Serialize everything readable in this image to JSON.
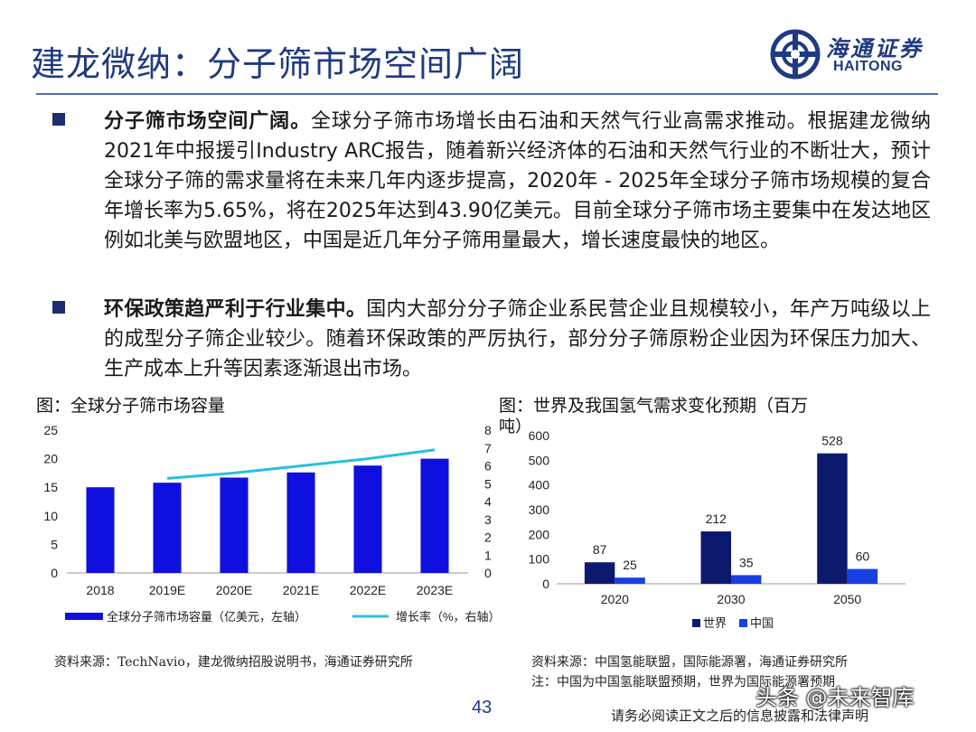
{
  "title": "建龙微纳：分子筛市场空间广阔",
  "logo": {
    "cn": "海通证券",
    "en": "HAITONG",
    "color": "#1f3a82"
  },
  "bullets": [
    {
      "heading": "分子筛市场空间广阔。",
      "text": "全球分子筛市场增长由石油和天然气行业高需求推动。根据建龙微纳2021年中报援引Industry ARC报告，随着新兴经济体的石油和天然气行业的不断壮大，预计全球分子筛的需求量将在未来几年内逐步提高，2020年 - 2025年全球分子筛市场规模的复合年增长率为5.65%，将在2025年达到43.90亿美元。目前全球分子筛市场主要集中在发达地区例如北美与欧盟地区，中国是近几年分子筛用量最大，增长速度最快的地区。"
    },
    {
      "heading": "环保政策趋严利于行业集中。",
      "text": "国内大部分分子筛企业系民营企业且规模较小，年产万吨级以上的成型分子筛企业较少。随着环保政策的严厉执行，部分分子筛原粉企业因为环保压力加大、生产成本上升等因素逐渐退出市场。"
    }
  ],
  "left_figure": {
    "caption": "图：全球分子筛市场容量",
    "source": "资料来源：TechNavio，建龙微纳招股说明书，海通证券研究所"
  },
  "right_figure": {
    "caption_line1": "图：世界及我国氢气需求变化预期（百万",
    "caption_line2": "吨）",
    "source_line1": "资料来源：中国氢能联盟，国际能源署，海通证券研究所",
    "source_line2": "注：中国为中国氢能联盟预期，世界为国际能源署预期"
  },
  "chart_data": [
    {
      "type": "bar",
      "categories": [
        "2018",
        "2019E",
        "2020E",
        "2021E",
        "2022E",
        "2023E"
      ],
      "series": [
        {
          "name": "全球分子筛市场容量（亿美元，左轴）",
          "type": "bar",
          "axis": "left",
          "values": [
            15.0,
            15.8,
            16.7,
            17.6,
            18.8,
            20.0
          ],
          "color": "#0f10e0"
        },
        {
          "name": "增长率（%，右轴）",
          "type": "line",
          "axis": "right",
          "values": [
            null,
            5.3,
            5.6,
            6.0,
            6.4,
            6.9
          ],
          "color": "#28c0e0"
        }
      ],
      "ylim": [
        0,
        25
      ],
      "yticks": [
        "0",
        "5",
        "10",
        "15",
        "20",
        "25"
      ],
      "y2lim": [
        0,
        8
      ],
      "y2ticks": [
        "0",
        "1",
        "2",
        "3",
        "4",
        "5",
        "6",
        "7",
        "8"
      ],
      "grid": false,
      "legend_position": "bottom"
    },
    {
      "type": "bar",
      "categories": [
        "2020",
        "2030",
        "2050"
      ],
      "series": [
        {
          "name": "世界",
          "values": [
            87,
            212,
            528
          ],
          "labels": [
            "87",
            "212",
            "528"
          ],
          "color": "#0c1a6e"
        },
        {
          "name": "中国",
          "values": [
            25,
            35,
            60
          ],
          "labels": [
            "25",
            "35",
            "60"
          ],
          "color": "#1840e0"
        }
      ],
      "ylim": [
        0,
        600
      ],
      "yticks": [
        "0",
        "100",
        "200",
        "300",
        "400",
        "500",
        "600"
      ],
      "grid": false,
      "legend_position": "bottom"
    }
  ],
  "page_number": "43",
  "disclaimer": "请务必阅读正文之后的信息披露和法律声明",
  "watermark": "头条 @未来智库"
}
